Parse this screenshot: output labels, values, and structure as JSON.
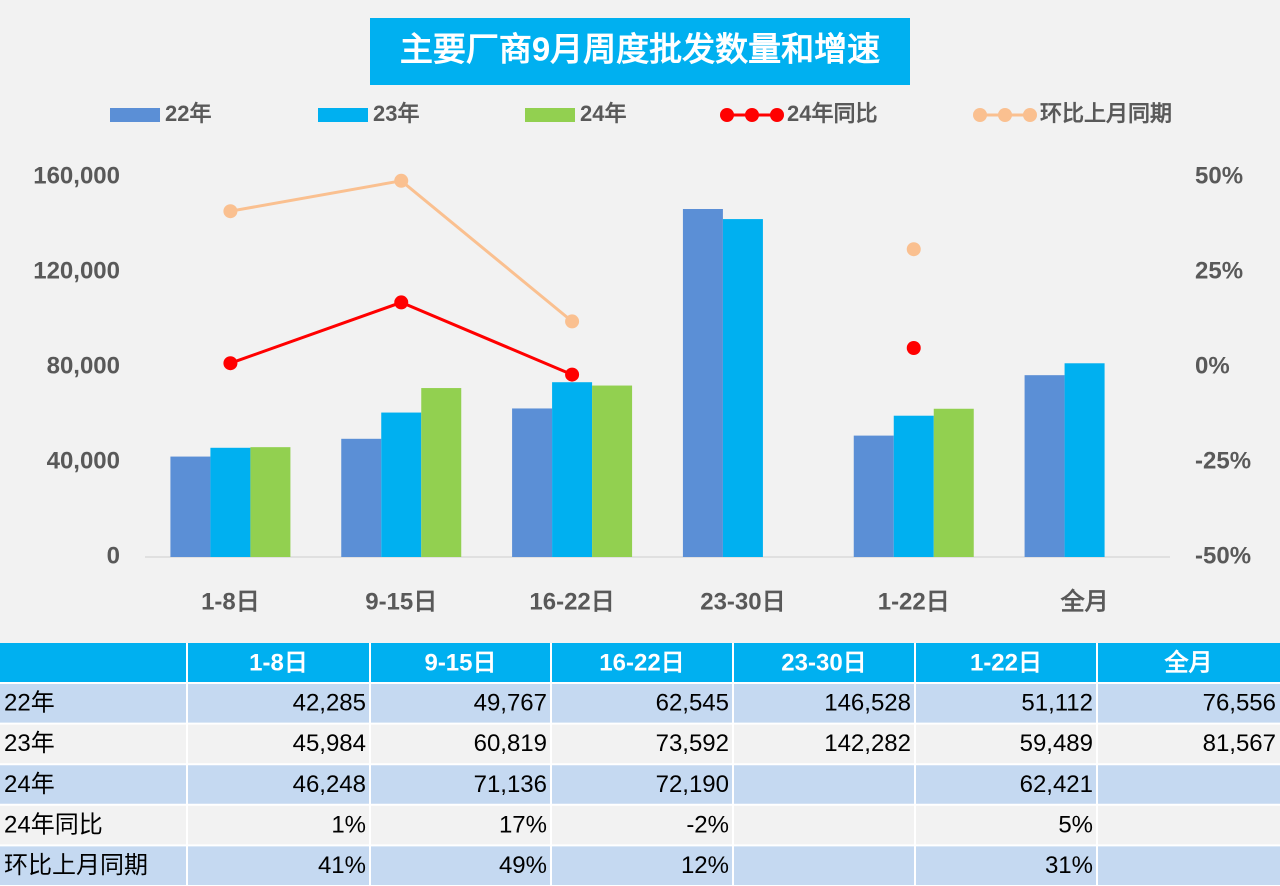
{
  "chart_data": {
    "type": "bar",
    "title": "主要厂商9月周度批发数量和增速",
    "categories": [
      "1-8日",
      "9-15日",
      "16-22日",
      "23-30日",
      "1-22日",
      "全月"
    ],
    "series": [
      {
        "name": "22年",
        "color": "#5b8fd6",
        "values": [
          42285,
          49767,
          62545,
          146528,
          51112,
          76556
        ],
        "value_labels": [
          "42,285",
          "49,767",
          "62,545",
          "146,528",
          "51,112",
          "76,556"
        ]
      },
      {
        "name": "23年",
        "color": "#00b0f0",
        "values": [
          45984,
          60819,
          73592,
          142282,
          59489,
          81567
        ],
        "value_labels": [
          "45,984",
          "60,819",
          "73,592",
          "142,282",
          "59,489",
          "81,567"
        ]
      },
      {
        "name": "24年",
        "color": "#92d050",
        "values": [
          46248,
          71136,
          72190,
          null,
          62421,
          null
        ],
        "value_labels": [
          "46,248",
          "71,136",
          "72,190",
          null,
          "62,421",
          null
        ]
      },
      {
        "name": "24年同比",
        "type": "line",
        "axis": "y2",
        "color": "#ff0000",
        "values": [
          1,
          17,
          -2,
          null,
          5,
          null
        ],
        "value_labels": [
          "1%",
          "17%",
          "-2%",
          null,
          "5%",
          null
        ]
      },
      {
        "name": "环比上月同期",
        "type": "line",
        "axis": "y2",
        "color": "#fac090",
        "values": [
          41,
          49,
          12,
          null,
          31,
          null
        ],
        "value_labels": [
          "41%",
          "49%",
          "12%",
          null,
          "31%",
          null
        ]
      }
    ],
    "ylim": [
      0,
      160000
    ],
    "yticks": [
      0,
      {
        "value": 40000,
        "label": "40,000"
      },
      {
        "value": 80000,
        "label": "80,000"
      },
      {
        "value": 120000,
        "label": "120,000"
      },
      {
        "value": 160000,
        "label": "160,000"
      }
    ],
    "y2lim": [
      -50,
      50
    ],
    "y2ticks": [
      {
        "value": -50,
        "label": "-50%"
      },
      {
        "value": -25,
        "label": "-25%"
      },
      {
        "value": 0,
        "label": "0%"
      },
      {
        "value": 25,
        "label": "25%"
      },
      {
        "value": 50,
        "label": "50%"
      }
    ],
    "legend": "top",
    "grid": false,
    "data_table": true
  }
}
